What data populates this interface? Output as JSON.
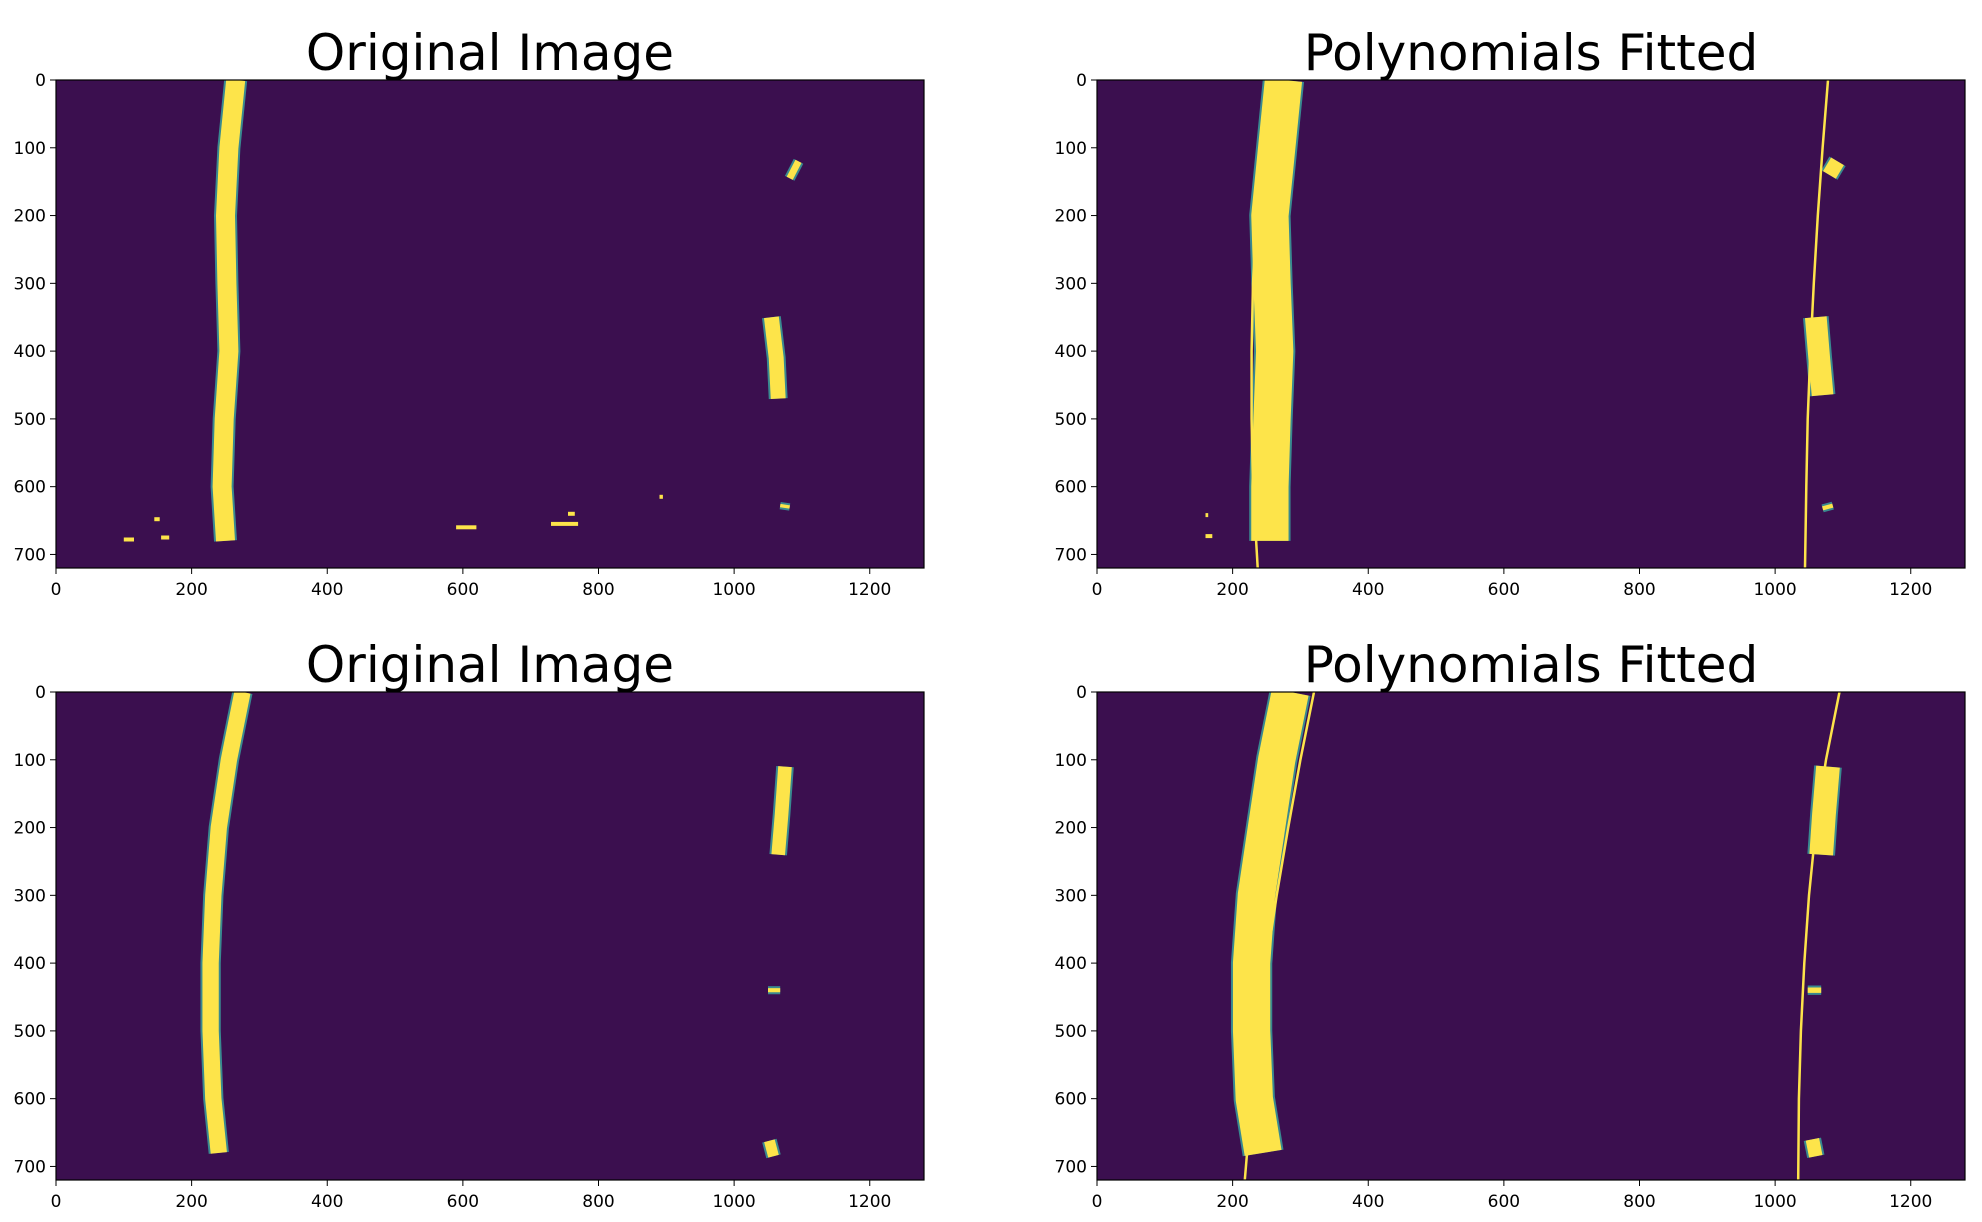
{
  "colors": {
    "background": "#3b0f4f",
    "lane": "#fde44a",
    "edge": "#3aa8a0",
    "fit": "#fde44a"
  },
  "chart_data": [
    {
      "type": "image",
      "title": "Original Image",
      "xlim": [
        0,
        1280
      ],
      "ylim": [
        720,
        0
      ],
      "xticks": [
        0,
        200,
        400,
        600,
        800,
        1000,
        1200
      ],
      "yticks": [
        0,
        100,
        200,
        300,
        400,
        500,
        600,
        700
      ],
      "lane_pixels": [
        {
          "name": "left-lane",
          "points": [
            [
              265,
              0
            ],
            [
              255,
              100
            ],
            [
              250,
              200
            ],
            [
              252,
              300
            ],
            [
              255,
              400
            ],
            [
              248,
              500
            ],
            [
              245,
              600
            ],
            [
              250,
              680
            ]
          ],
          "width": 28
        },
        {
          "name": "right-top",
          "points": [
            [
              1095,
              120
            ],
            [
              1082,
              145
            ]
          ],
          "width": 10
        },
        {
          "name": "right-mid",
          "points": [
            [
              1055,
              350
            ],
            [
              1062,
              410
            ],
            [
              1065,
              470
            ]
          ],
          "width": 22
        },
        {
          "name": "right-low",
          "points": [
            [
              1068,
              628
            ],
            [
              1082,
              630
            ]
          ],
          "width": 5
        }
      ],
      "noise": [
        [
          100,
          678,
          15
        ],
        [
          155,
          675,
          12
        ],
        [
          590,
          660,
          30
        ],
        [
          730,
          655,
          40
        ],
        [
          755,
          640,
          10
        ],
        [
          145,
          648,
          8
        ],
        [
          890,
          615,
          5
        ],
        [
          240,
          645,
          12
        ]
      ],
      "fits": []
    },
    {
      "type": "image",
      "title": "Polynomials Fitted",
      "xlim": [
        0,
        1280
      ],
      "ylim": [
        720,
        0
      ],
      "xticks": [
        0,
        200,
        400,
        600,
        800,
        1000,
        1200
      ],
      "yticks": [
        0,
        100,
        200,
        300,
        400,
        500,
        600,
        700
      ],
      "lane_pixels": [
        {
          "name": "left-lane",
          "points": [
            [
              275,
              0
            ],
            [
              265,
              100
            ],
            [
              255,
              200
            ],
            [
              258,
              300
            ],
            [
              262,
              400
            ],
            [
              258,
              500
            ],
            [
              255,
              600
            ],
            [
              255,
              680
            ]
          ],
          "width": 55
        },
        {
          "name": "right-top",
          "points": [
            [
              1092,
              120
            ],
            [
              1080,
              140
            ]
          ],
          "width": 22
        },
        {
          "name": "right-mid",
          "points": [
            [
              1060,
              350
            ],
            [
              1065,
              410
            ],
            [
              1070,
              465
            ]
          ],
          "width": 32
        },
        {
          "name": "right-low",
          "points": [
            [
              1070,
              632
            ],
            [
              1085,
              628
            ]
          ],
          "width": 6
        }
      ],
      "noise": [
        [
          160,
          673,
          10
        ],
        [
          160,
          642,
          4
        ],
        [
          250,
          660,
          18
        ]
      ],
      "fits": [
        {
          "name": "left-fit",
          "points": [
            [
              258,
              0
            ],
            [
              245,
              100
            ],
            [
              235,
              200
            ],
            [
              230,
              300
            ],
            [
              228,
              400
            ],
            [
              228,
              500
            ],
            [
              230,
              600
            ],
            [
              237,
              720
            ]
          ]
        },
        {
          "name": "right-fit",
          "points": [
            [
              1078,
              0
            ],
            [
              1070,
              100
            ],
            [
              1063,
              200
            ],
            [
              1057,
              300
            ],
            [
              1052,
              400
            ],
            [
              1048,
              500
            ],
            [
              1046,
              600
            ],
            [
              1044,
              720
            ]
          ]
        }
      ]
    },
    {
      "type": "image",
      "title": "Original Image",
      "xlim": [
        0,
        1280
      ],
      "ylim": [
        720,
        0
      ],
      "xticks": [
        0,
        200,
        400,
        600,
        800,
        1000,
        1200
      ],
      "yticks": [
        0,
        100,
        200,
        300,
        400,
        500,
        600,
        700
      ],
      "lane_pixels": [
        {
          "name": "left-lane",
          "points": [
            [
              275,
              0
            ],
            [
              255,
              100
            ],
            [
              240,
              200
            ],
            [
              232,
              300
            ],
            [
              228,
              400
            ],
            [
              228,
              500
            ],
            [
              232,
              600
            ],
            [
              240,
              680
            ]
          ],
          "width": 24
        },
        {
          "name": "right-top",
          "points": [
            [
              1075,
              110
            ],
            [
              1070,
              180
            ],
            [
              1065,
              240
            ]
          ],
          "width": 20
        },
        {
          "name": "right-mid",
          "points": [
            [
              1050,
              440
            ],
            [
              1068,
              440
            ]
          ],
          "width": 6
        },
        {
          "name": "right-low",
          "points": [
            [
              1052,
              662
            ],
            [
              1058,
              685
            ]
          ],
          "width": 16
        }
      ],
      "noise": [],
      "fits": []
    },
    {
      "type": "image",
      "title": "Polynomials Fitted",
      "xlim": [
        0,
        1280
      ],
      "ylim": [
        720,
        0
      ],
      "xticks": [
        0,
        200,
        400,
        600,
        800,
        1000,
        1200
      ],
      "yticks": [
        0,
        100,
        200,
        300,
        400,
        500,
        600,
        700
      ],
      "lane_pixels": [
        {
          "name": "left-lane",
          "points": [
            [
              285,
              0
            ],
            [
              265,
              100
            ],
            [
              250,
              200
            ],
            [
              235,
              300
            ],
            [
              228,
              400
            ],
            [
              228,
              500
            ],
            [
              232,
              600
            ],
            [
              245,
              680
            ]
          ],
          "width": 55
        },
        {
          "name": "right-top",
          "points": [
            [
              1078,
              110
            ],
            [
              1072,
              180
            ],
            [
              1068,
              240
            ]
          ],
          "width": 35
        },
        {
          "name": "right-mid",
          "points": [
            [
              1048,
              440
            ],
            [
              1068,
              440
            ]
          ],
          "width": 8
        },
        {
          "name": "right-low",
          "points": [
            [
              1055,
              660
            ],
            [
              1060,
              685
            ]
          ],
          "width": 20
        }
      ],
      "noise": [],
      "fits": [
        {
          "name": "left-fit",
          "points": [
            [
              320,
              0
            ],
            [
              300,
              100
            ],
            [
              282,
              200
            ],
            [
              265,
              300
            ],
            [
              250,
              400
            ],
            [
              238,
              500
            ],
            [
              228,
              600
            ],
            [
              218,
              720
            ]
          ]
        },
        {
          "name": "right-fit",
          "points": [
            [
              1095,
              0
            ],
            [
              1075,
              100
            ],
            [
              1060,
              200
            ],
            [
              1050,
              300
            ],
            [
              1043,
              400
            ],
            [
              1038,
              500
            ],
            [
              1035,
              600
            ],
            [
              1034,
              720
            ]
          ]
        }
      ]
    }
  ]
}
